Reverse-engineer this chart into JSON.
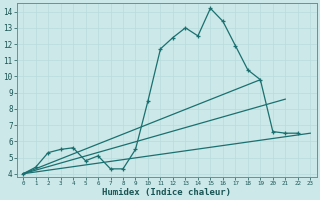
{
  "xlabel": "Humidex (Indice chaleur)",
  "bg_color": "#cce8e8",
  "grid_color": "#aad4d4",
  "line_color": "#1a7070",
  "xlim": [
    -0.5,
    23.5
  ],
  "ylim": [
    3.8,
    14.5
  ],
  "xticks": [
    0,
    1,
    2,
    3,
    4,
    5,
    6,
    7,
    8,
    9,
    10,
    11,
    12,
    13,
    14,
    15,
    16,
    17,
    18,
    19,
    20,
    21,
    22,
    23
  ],
  "yticks": [
    4,
    5,
    6,
    7,
    8,
    9,
    10,
    11,
    12,
    13,
    14
  ],
  "jagged": {
    "x": [
      0,
      1,
      2,
      3,
      4,
      5,
      6,
      7,
      8,
      9,
      10,
      11,
      12,
      13,
      14,
      15,
      16,
      17,
      18,
      19,
      20,
      21,
      22
    ],
    "y": [
      4.0,
      4.4,
      5.3,
      5.5,
      5.6,
      4.8,
      5.1,
      4.3,
      4.3,
      5.5,
      8.5,
      11.7,
      12.4,
      13.0,
      12.5,
      14.2,
      13.4,
      11.9,
      10.4,
      9.8,
      6.6,
      6.5,
      6.5
    ]
  },
  "straight_lines": [
    {
      "x": [
        0,
        19
      ],
      "y": [
        4.0,
        9.8
      ]
    },
    {
      "x": [
        0,
        21
      ],
      "y": [
        4.0,
        8.6
      ]
    },
    {
      "x": [
        0,
        23
      ],
      "y": [
        4.0,
        6.5
      ]
    }
  ]
}
